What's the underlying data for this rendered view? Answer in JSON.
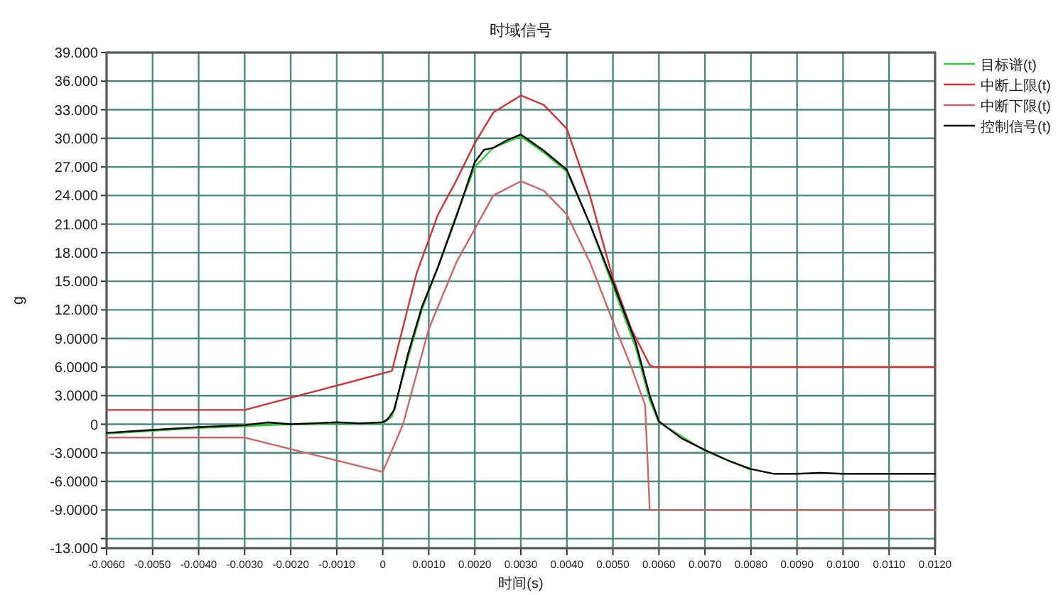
{
  "chart_data": {
    "type": "line",
    "title": "时域信号",
    "xlabel": "时间(s)",
    "ylabel": "g",
    "grid": true,
    "legend": "top right",
    "line_style": "solid",
    "marker": "none",
    "xlim": [
      -0.006,
      0.012
    ],
    "xticks": [
      {
        "value": -0.006,
        "label": "-0.0060"
      },
      {
        "value": -0.005,
        "label": "-0.0050"
      },
      {
        "value": -0.004,
        "label": "-0.0040"
      },
      {
        "value": -0.003,
        "label": "-0.0030"
      },
      {
        "value": -0.002,
        "label": "-0.0020"
      },
      {
        "value": -0.001,
        "label": "-0.0010"
      },
      0,
      {
        "value": 0.001,
        "label": "0.0010"
      },
      {
        "value": 0.002,
        "label": "0.0020"
      },
      {
        "value": 0.003,
        "label": "0.0030"
      },
      {
        "value": 0.004,
        "label": "0.0040"
      },
      {
        "value": 0.005,
        "label": "0.0050"
      },
      {
        "value": 0.006,
        "label": "0.0060"
      },
      {
        "value": 0.007,
        "label": "0.0070"
      },
      {
        "value": 0.008,
        "label": "0.0080"
      },
      {
        "value": 0.009,
        "label": "0.0090"
      },
      {
        "value": 0.01,
        "label": "0.0100"
      },
      {
        "value": 0.011,
        "label": "0.0110"
      },
      {
        "value": 0.012,
        "label": "0.0120"
      }
    ],
    "ylim": [
      -13,
      39
    ],
    "yticks": [
      {
        "value": 39,
        "label": "39.000"
      },
      {
        "value": 36,
        "label": "36.000"
      },
      {
        "value": 33,
        "label": "33.000"
      },
      {
        "value": 30,
        "label": "30.000"
      },
      {
        "value": 27,
        "label": "27.000"
      },
      {
        "value": 24,
        "label": "24.000"
      },
      {
        "value": 21,
        "label": "21.000"
      },
      {
        "value": 18,
        "label": "18.000"
      },
      {
        "value": 15,
        "label": "15.000"
      },
      {
        "value": 12,
        "label": "12.000"
      },
      {
        "value": 9,
        "label": "9.0000"
      },
      {
        "value": 6,
        "label": "6.0000"
      },
      {
        "value": 3,
        "label": "3.0000"
      },
      0,
      {
        "value": -3,
        "label": "-3.0000"
      },
      {
        "value": -6,
        "label": "-6.0000"
      },
      {
        "value": -9,
        "label": "-9.0000"
      },
      {
        "value": -12,
        "label": null
      },
      {
        "value": -13,
        "label": "-13.000"
      }
    ],
    "series": [
      {
        "name": "目标谱(t)",
        "color": "#33cc33",
        "x": [
          -0.006,
          -0.005,
          -0.004,
          -0.003,
          -0.002,
          -0.001,
          0,
          0.0002,
          0.00055,
          0.00085,
          0.0012,
          0.0016,
          0.002,
          0.0024,
          0.003,
          0.0035,
          0.004,
          0.0045,
          0.005,
          0.0055,
          0.0058,
          0.006,
          0.007,
          0.008
        ],
        "values": [
          -1.0,
          -0.7,
          -0.4,
          -0.2,
          0,
          0.1,
          0.1,
          0.8,
          7,
          12,
          16.5,
          22,
          27,
          29,
          30.2,
          28.5,
          26.5,
          21,
          14.5,
          8,
          2.5,
          0.2,
          -2.8,
          -4.8
        ]
      },
      {
        "name": "中断上限(t)",
        "color": "#cc3333",
        "x": [
          -0.006,
          -0.003,
          0.0002,
          0.00074,
          0.0012,
          0.00157,
          0.002,
          0.0024,
          0.003,
          0.0035,
          0.004,
          0.0045,
          0.005,
          0.0054,
          0.0058,
          0.0059,
          0.012
        ],
        "values": [
          1.5,
          1.5,
          5.6,
          15.9,
          22,
          25.3,
          29.5,
          32.7,
          34.5,
          33.5,
          31,
          24,
          15.3,
          10,
          6.2,
          6,
          6
        ]
      },
      {
        "name": "中断下限(t)",
        "color": "#cc6666",
        "x": [
          -0.006,
          -0.003,
          0,
          0.00044,
          0.001,
          0.0016,
          0.0024,
          0.003,
          0.0035,
          0.004,
          0.0045,
          0.005,
          0.0054,
          0.0057,
          0.0058,
          0.012
        ],
        "values": [
          -1.4,
          -1.4,
          -5,
          0,
          10,
          17,
          24,
          25.5,
          24.5,
          22,
          17,
          10.8,
          6,
          2,
          -9,
          -9
        ]
      },
      {
        "name": "控制信号(t)",
        "color": "#000000",
        "x": [
          -0.006,
          -0.005,
          -0.004,
          -0.003,
          -0.0025,
          -0.002,
          -0.0015,
          -0.001,
          -0.0005,
          0,
          0.0001,
          0.00025,
          0.00055,
          0.00085,
          0.0012,
          0.0016,
          0.002,
          0.0022,
          0.0024,
          0.0027,
          0.003,
          0.0035,
          0.004,
          0.0045,
          0.005,
          0.0055,
          0.0058,
          0.006,
          0.0065,
          0.007,
          0.0075,
          0.008,
          0.0085,
          0.009,
          0.0095,
          0.01,
          0.011,
          0.012
        ],
        "values": [
          -0.9,
          -0.6,
          -0.3,
          -0.1,
          0.2,
          0,
          0.1,
          0.2,
          0.1,
          0.2,
          0.5,
          1.5,
          7.4,
          12.3,
          16.5,
          21.8,
          27.5,
          28.8,
          29,
          29.8,
          30.4,
          28.7,
          26.7,
          21,
          14.9,
          8.5,
          3,
          0.3,
          -1.5,
          -2.7,
          -3.8,
          -4.7,
          -5.2,
          -5.2,
          -5.1,
          -5.2,
          -5.2,
          -5.2
        ]
      }
    ]
  }
}
